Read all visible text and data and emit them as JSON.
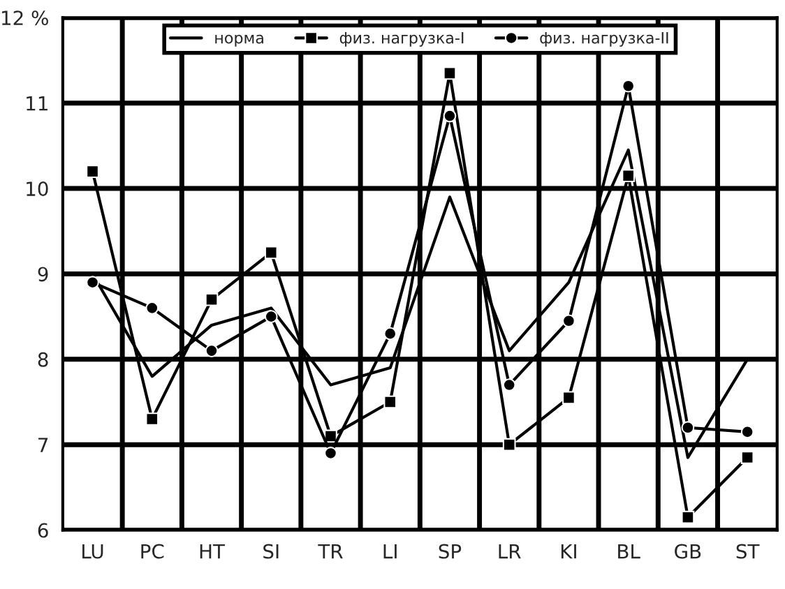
{
  "chart_data": {
    "type": "line",
    "categories": [
      "LU",
      "PC",
      "HT",
      "SI",
      "TR",
      "LI",
      "SP",
      "LR",
      "KI",
      "BL",
      "GB",
      "ST"
    ],
    "series": [
      {
        "name": "норма",
        "color": "#000000",
        "marker": "none",
        "values": [
          9.0,
          7.8,
          8.4,
          8.6,
          7.7,
          7.9,
          9.9,
          8.1,
          8.9,
          10.45,
          6.85,
          8.0
        ]
      },
      {
        "name": "физ. нагрузка-I",
        "color": "#000000",
        "marker": "square",
        "values": [
          10.2,
          7.3,
          8.7,
          9.25,
          7.1,
          7.5,
          11.35,
          7.0,
          7.55,
          10.15,
          6.15,
          6.85
        ]
      },
      {
        "name": "физ. нагрузка-II",
        "color": "#000000",
        "marker": "circle",
        "values": [
          8.9,
          8.6,
          8.1,
          8.5,
          6.9,
          8.3,
          10.85,
          7.7,
          8.45,
          11.2,
          7.2,
          7.15
        ]
      }
    ],
    "ylim": [
      6,
      12
    ],
    "yticks": [
      6,
      7,
      8,
      9,
      10,
      11,
      {
        "value": 12,
        "label": "12 %"
      }
    ],
    "grid": true,
    "legend": "top",
    "line_style": "solid"
  }
}
